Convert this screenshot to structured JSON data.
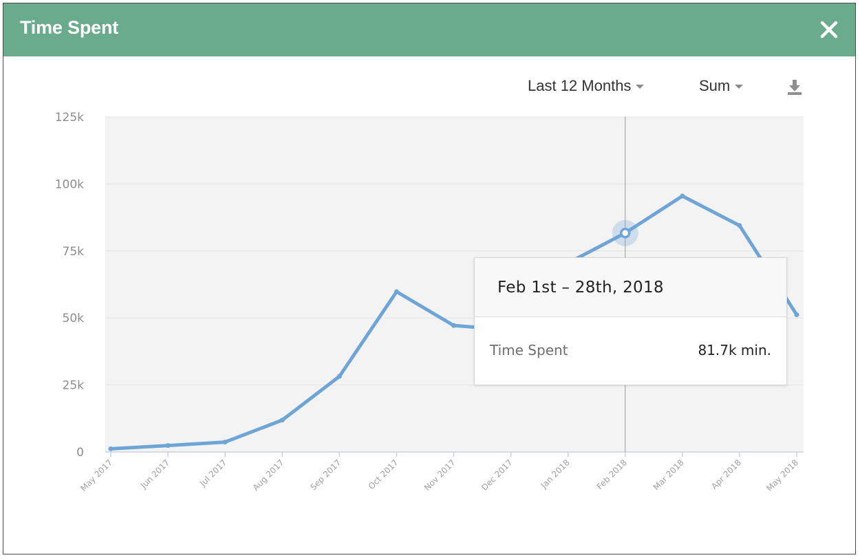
{
  "header": {
    "title": "Time Spent",
    "background_color": "#69ab8c",
    "close_icon": "close-icon"
  },
  "toolbar": {
    "range_label": "Last 12 Months",
    "aggregate_label": "Sum",
    "download_icon": "download-icon"
  },
  "tooltip": {
    "date_range": "Feb 1st – 28th, 2018",
    "series_label": "Time Spent",
    "value_text": "81.7k min."
  },
  "chart_data": {
    "type": "line",
    "categories": [
      "May 2017",
      "Jun 2017",
      "Jul 2017",
      "Aug 2017",
      "Sep 2017",
      "Oct 2017",
      "Nov 2017",
      "Dec 2017",
      "Jan 2018",
      "Feb 2018",
      "Mar 2018",
      "Apr 2018",
      "May 2018"
    ],
    "series": [
      {
        "values": [
          1200,
          2400,
          3700,
          11900,
          28200,
          59800,
          47200,
          45500,
          70500,
          81700,
          95500,
          84500,
          51200
        ]
      }
    ],
    "yticks": [
      "0",
      "25k",
      "50k",
      "75k",
      "100k",
      "125k"
    ],
    "ylim": [
      0,
      125000
    ],
    "grid": true,
    "highlighted_category": "Feb 2018",
    "line_color": "#6ea5d6",
    "plot_background": "#f3f3f3"
  }
}
